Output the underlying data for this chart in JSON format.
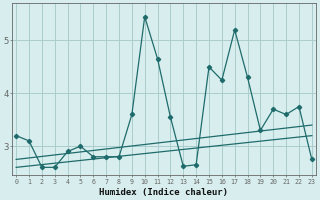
{
  "x": [
    0,
    1,
    2,
    3,
    4,
    5,
    6,
    7,
    8,
    9,
    10,
    11,
    12,
    13,
    14,
    15,
    16,
    17,
    18,
    19,
    20,
    21,
    22,
    23
  ],
  "y_main": [
    3.2,
    3.1,
    2.6,
    2.6,
    2.9,
    3.0,
    2.8,
    2.8,
    2.8,
    3.6,
    5.45,
    4.65,
    3.55,
    2.62,
    2.65,
    4.5,
    4.25,
    5.2,
    4.3,
    3.3,
    3.7,
    3.6,
    3.75,
    2.75
  ],
  "trend1_start": 2.75,
  "trend1_end": 3.4,
  "trend2_start": 2.6,
  "trend2_end": 3.2,
  "bg_color": "#d8eeee",
  "line_color": "#1f6b6b",
  "grid_color": "#aacccc",
  "xlabel": "Humidex (Indice chaleur)",
  "yticks": [
    3,
    4,
    5
  ],
  "xticks": [
    0,
    1,
    2,
    3,
    4,
    5,
    6,
    7,
    8,
    9,
    10,
    11,
    12,
    13,
    14,
    15,
    16,
    17,
    18,
    19,
    20,
    21,
    22,
    23
  ],
  "ylim": [
    2.45,
    5.7
  ],
  "xlim": [
    -0.3,
    23.3
  ]
}
